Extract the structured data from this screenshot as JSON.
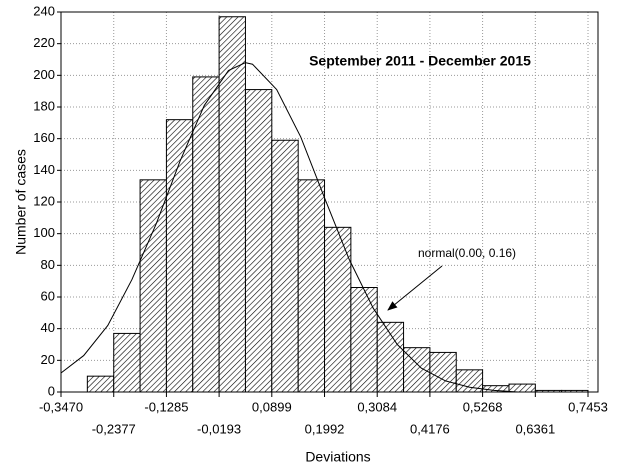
{
  "chart_data": {
    "type": "histogram",
    "title": "September 2011 - December 2015",
    "x_label": "Deviations",
    "y_label": "Number of cases",
    "bins": [
      -0.347,
      -0.2924,
      -0.2377,
      -0.1831,
      -0.1285,
      -0.0739,
      -0.0193,
      0.0353,
      0.0899,
      0.1446,
      0.1992,
      0.2538,
      0.3084,
      0.363,
      0.4176,
      0.4722,
      0.5268,
      0.5815,
      0.6361,
      0.6907,
      0.7453
    ],
    "counts": [
      0,
      10,
      37,
      134,
      172,
      199,
      237,
      191,
      159,
      134,
      104,
      66,
      44,
      28,
      25,
      14,
      4,
      5,
      1,
      1
    ],
    "color": "#000000",
    "curve": {
      "name": "normal(0.00,  0.16)",
      "color": "#000000",
      "x": [
        -0.347,
        -0.3,
        -0.25,
        -0.2,
        -0.15,
        -0.1,
        -0.05,
        0,
        0.035,
        0.05,
        0.1,
        0.15,
        0.2,
        0.25,
        0.3,
        0.35,
        0.4,
        0.45,
        0.5,
        0.55,
        0.6,
        0.65,
        0.7,
        0.7453
      ],
      "values": [
        12,
        23,
        42,
        71,
        106,
        146,
        181,
        203,
        208,
        207,
        191,
        161,
        122,
        84,
        53,
        30,
        15,
        7,
        3,
        1,
        0,
        0,
        0,
        0
      ]
    },
    "xlim": [
      -0.347,
      0.766
    ],
    "ylim": [
      0,
      240
    ],
    "xticks": [
      {
        "value": -0.347,
        "label": "-0,3470"
      },
      {
        "value": -0.2377,
        "label": "-0,2377"
      },
      {
        "value": -0.1285,
        "label": "-0,1285"
      },
      {
        "value": -0.0193,
        "label": "-0,0193"
      },
      {
        "value": 0.0899,
        "label": "0,0899"
      },
      {
        "value": 0.1992,
        "label": "0,1992"
      },
      {
        "value": 0.3084,
        "label": "0,3084"
      },
      {
        "value": 0.4176,
        "label": "0,4176"
      },
      {
        "value": 0.5268,
        "label": "0,5268"
      },
      {
        "value": 0.6361,
        "label": "0,6361"
      },
      {
        "value": 0.7453,
        "label": "0,7453"
      }
    ],
    "yticks": [
      0,
      20,
      40,
      60,
      80,
      100,
      120,
      140,
      160,
      180,
      200,
      220,
      240
    ],
    "grid": true
  }
}
